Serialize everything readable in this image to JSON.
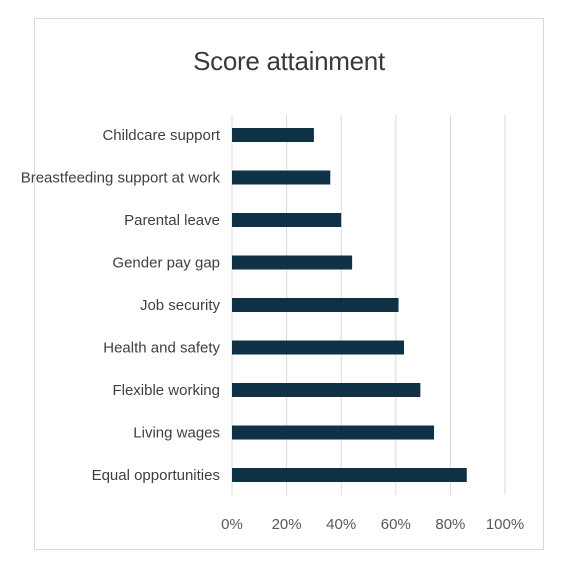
{
  "chart_data": {
    "type": "bar",
    "orientation": "horizontal",
    "title": "Score attainment",
    "categories": [
      "Childcare support",
      "Breastfeeding support at work",
      "Parental leave",
      "Gender pay gap",
      "Job security",
      "Health and safety",
      "Flexible working",
      "Living wages",
      "Equal opportunities"
    ],
    "values": [
      0.3,
      0.36,
      0.4,
      0.44,
      0.61,
      0.63,
      0.69,
      0.74,
      0.86
    ],
    "x_ticks": [
      "0%",
      "20%",
      "40%",
      "60%",
      "80%",
      "100%"
    ],
    "xlim": [
      0,
      1
    ],
    "grid": "vertical",
    "bar_color": "#0f3146",
    "grid_color": "#d9d9d9",
    "legend": "none"
  }
}
